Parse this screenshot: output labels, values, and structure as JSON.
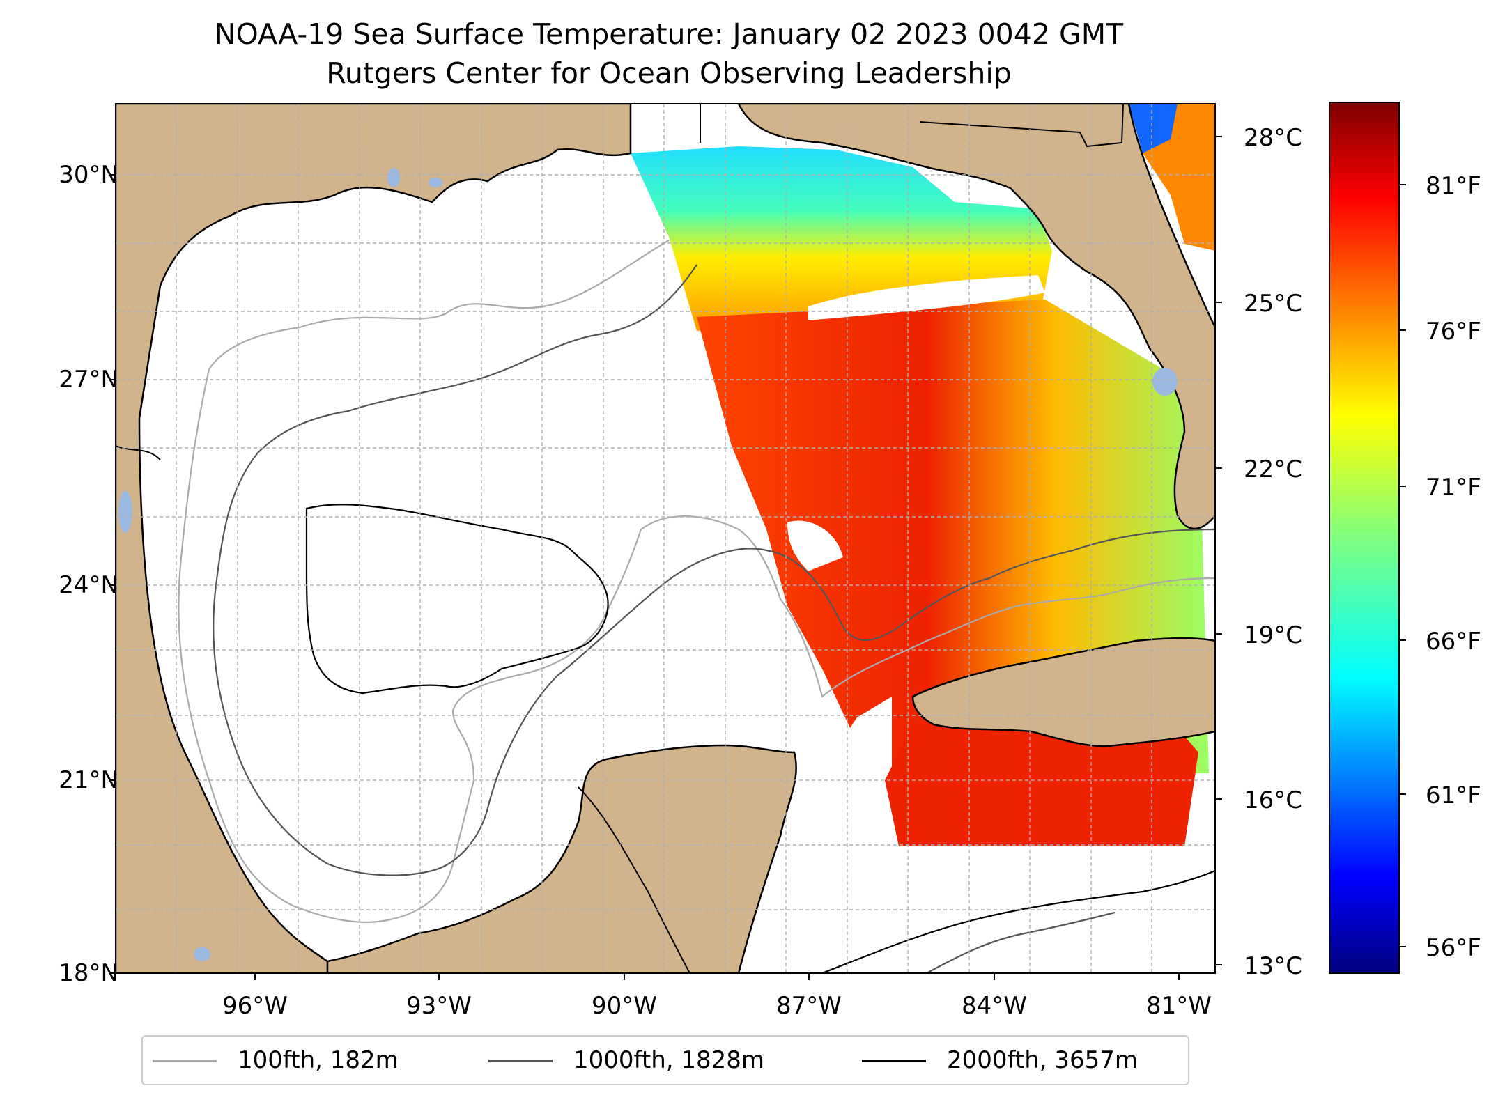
{
  "title": {
    "line1": "NOAA-19 Sea Surface Temperature: January 02 2023 0042 GMT",
    "line2": "Rutgers Center for Ocean Observing Leadership"
  },
  "map": {
    "lat_ticks": [
      "30°N",
      "27°N",
      "24°N",
      "21°N",
      "18°N"
    ],
    "lon_ticks": [
      "96°W",
      "93°W",
      "90°W",
      "87°W",
      "84°W",
      "81°W"
    ],
    "colors": {
      "land": "#d2b48c",
      "water": "#ffffff",
      "lakes": "#9bb8e0",
      "grid": "#b0b0b0"
    }
  },
  "colorbar": {
    "celsius_ticks": [
      "28°C",
      "25°C",
      "22°C",
      "19°C",
      "16°C",
      "13°C"
    ],
    "fahrenheit_ticks": [
      "81°F",
      "76°F",
      "71°F",
      "66°F",
      "61°F",
      "56°F"
    ],
    "colormap": "jet"
  },
  "legend": {
    "items": [
      {
        "label": "100fth, 182m",
        "color": "#aaaaaa"
      },
      {
        "label": "1000fth, 1828m",
        "color": "#555555"
      },
      {
        "label": "2000fth, 3657m",
        "color": "#000000"
      }
    ]
  }
}
